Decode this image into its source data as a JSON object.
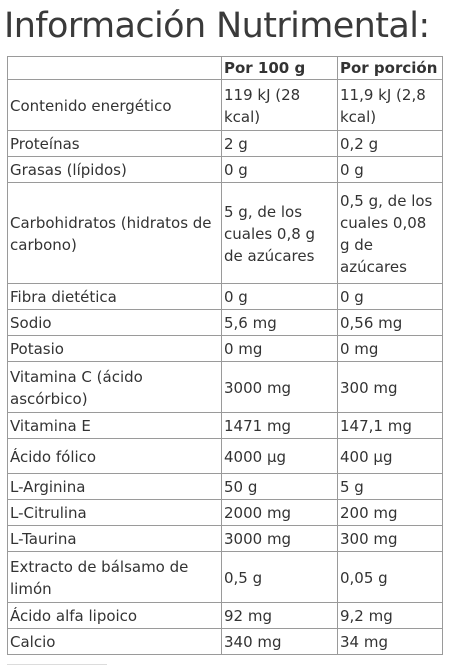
{
  "title": "Información Nutrimental:",
  "table": {
    "headers": [
      "",
      "Por 100 g",
      "Por porción"
    ],
    "rows": [
      {
        "nutrient": "Contenido energético",
        "per100": "119 kJ (28 kcal)",
        "perServing": "11,9 kJ (2,8 kcal)"
      },
      {
        "nutrient": "Proteínas",
        "per100": "2 g",
        "perServing": "0,2 g"
      },
      {
        "nutrient": "Grasas (lípidos)",
        "per100": "0 g",
        "perServing": "0 g"
      },
      {
        "nutrient": "Carbohidratos (hidratos de carbono)",
        "per100": "5 g, de los cuales 0,8 g de azúcares",
        "perServing": "0,5 g, de los cuales  0,08 g de azúcares"
      },
      {
        "nutrient": "Fibra dietética",
        "per100": "0 g",
        "perServing": "0 g"
      },
      {
        "nutrient": "Sodio",
        "per100": "5,6 mg",
        "perServing": "0,56 mg"
      },
      {
        "nutrient": "Potasio",
        "per100": "0 mg",
        "perServing": "0 mg"
      },
      {
        "nutrient": "Vitamina C (ácido ascórbico)",
        "per100": "3000 mg",
        "perServing": "300 mg"
      },
      {
        "nutrient": "Vitamina E",
        "per100": "1471 mg",
        "perServing": "147,1 mg"
      },
      {
        "nutrient": "Ácido fólico",
        "per100": "4000 µg",
        "perServing": "400 µg"
      },
      {
        "nutrient": "L-Arginina",
        "per100": "50 g",
        "perServing": "5 g"
      },
      {
        "nutrient": "L-Citrulina",
        "per100": "2000 mg",
        "perServing": "200 mg"
      },
      {
        "nutrient": "L-Taurina",
        "per100": "3000 mg",
        "perServing": "300 mg"
      },
      {
        "nutrient": "Extracto de bálsamo de limón",
        "per100": "0,5 g",
        "perServing": "0,05 g"
      },
      {
        "nutrient": "Ácido alfa lipoico",
        "per100": "92 mg",
        "perServing": "9,2 mg"
      },
      {
        "nutrient": "Calcio",
        "per100": "340 mg",
        "perServing": "34 mg"
      }
    ]
  }
}
